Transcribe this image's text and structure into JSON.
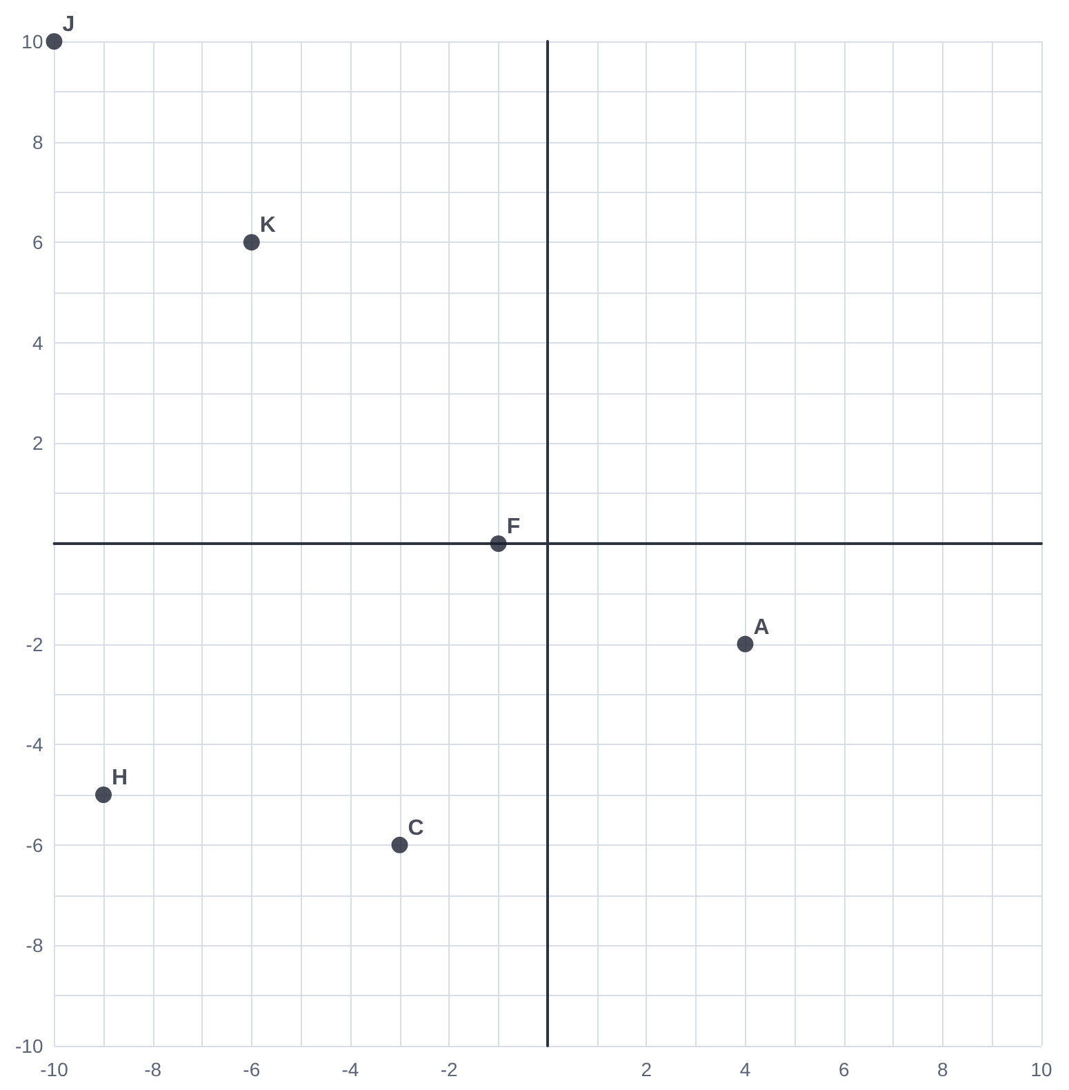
{
  "chart_data": {
    "type": "scatter",
    "series": [
      {
        "color": "#1c2030",
        "x": [
          -10,
          -6,
          -1,
          4,
          -9,
          -3
        ],
        "values": [
          10,
          6,
          0,
          -2,
          -5,
          -6
        ],
        "value_labels": [
          "J",
          "K",
          "F",
          "A",
          "H",
          "C"
        ]
      }
    ],
    "xlim": [
      -10,
      10
    ],
    "ylim": [
      -10,
      10
    ],
    "xticks": [
      -10,
      {
        "value": -9,
        "label": null
      },
      -8,
      {
        "value": -7,
        "label": null
      },
      -6,
      {
        "value": -5,
        "label": null
      },
      -4,
      {
        "value": -3,
        "label": null
      },
      -2,
      {
        "value": -1,
        "label": null
      },
      {
        "value": 0,
        "label": null
      },
      {
        "value": 1,
        "label": null
      },
      2,
      {
        "value": 3,
        "label": null
      },
      4,
      {
        "value": 5,
        "label": null
      },
      6,
      {
        "value": 7,
        "label": null
      },
      8,
      {
        "value": 9,
        "label": null
      },
      10
    ],
    "yticks": [
      -10,
      {
        "value": -9,
        "label": null
      },
      -8,
      {
        "value": -7,
        "label": null
      },
      -6,
      {
        "value": -5,
        "label": null
      },
      -4,
      {
        "value": -3,
        "label": null
      },
      -2,
      {
        "value": -1,
        "label": null
      },
      {
        "value": 0,
        "label": null
      },
      {
        "value": 1,
        "label": null
      },
      2,
      {
        "value": 3,
        "label": null
      },
      4,
      {
        "value": 5,
        "label": null
      },
      6,
      {
        "value": 7,
        "label": null
      },
      8,
      {
        "value": 9,
        "label": null
      },
      10
    ],
    "grid": true,
    "marker": "circle"
  }
}
